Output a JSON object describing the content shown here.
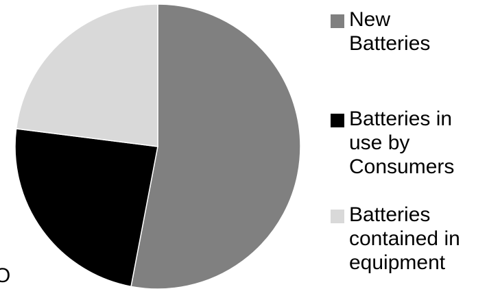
{
  "chart_data": {
    "type": "pie",
    "title": "",
    "slices": [
      {
        "label": "New\nBatteries",
        "value": 53,
        "color": "#808080"
      },
      {
        "label": "Batteries in\nuse by\nConsumers",
        "value": 24,
        "color": "#000000"
      },
      {
        "label": "Batteries\ncontained in\nequipment",
        "value": 23,
        "color": "#d9d9d9"
      }
    ],
    "legend": {
      "position": "right"
    },
    "stray_text": "O"
  }
}
